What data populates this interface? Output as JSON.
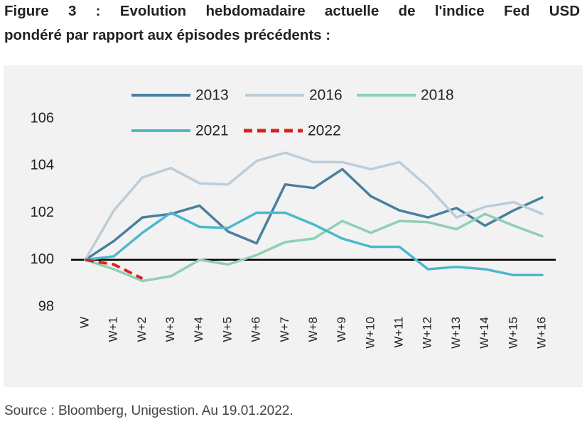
{
  "chart_data": {
    "type": "line",
    "title": [
      "Figure 3 : Evolution hebdomadaire actuelle de l'indice Fed USD",
      "pondéré par rapport aux épisodes précédents :"
    ],
    "source": "Source : Bloomberg, Unigestion. Au 19.01.2022.",
    "categories": [
      "W",
      "W+1",
      "W+2",
      "W+3",
      "W+4",
      "W+5",
      "W+6",
      "W+7",
      "W+8",
      "W+9",
      "W+10",
      "W+11",
      "W+12",
      "W+13",
      "W+14",
      "W+15",
      "W+16"
    ],
    "series": [
      {
        "name": "2013",
        "color": "#4a7fa0",
        "values": [
          100,
          100.8,
          101.8,
          101.95,
          102.3,
          101.2,
          100.7,
          103.2,
          103.05,
          103.85,
          102.7,
          102.1,
          101.8,
          102.2,
          101.45,
          102.1,
          102.65
        ]
      },
      {
        "name": "2016",
        "color": "#bccdd8",
        "values": [
          100,
          102.1,
          103.5,
          103.9,
          103.25,
          103.2,
          104.2,
          104.55,
          104.15,
          104.15,
          103.85,
          104.15,
          103.1,
          101.8,
          102.25,
          102.45,
          101.95
        ]
      },
      {
        "name": "2018",
        "color": "#8fd0b0",
        "values": [
          100,
          99.6,
          99.1,
          99.3,
          100,
          99.8,
          100.2,
          100.75,
          100.9,
          101.65,
          101.15,
          101.65,
          101.6,
          101.3,
          101.95,
          101.45,
          101.0
        ]
      },
      {
        "name": "2021",
        "color": "#4bb8cc",
        "values": [
          100,
          100.15,
          101.15,
          102.0,
          101.4,
          101.35,
          102.0,
          102.0,
          101.5,
          100.9,
          100.55,
          100.55,
          99.6,
          99.7,
          99.6,
          99.35,
          99.35
        ]
      },
      {
        "name": "2022",
        "color": "#e02020",
        "dashed": true,
        "values": [
          100,
          99.8,
          99.2,
          null,
          null,
          null,
          null,
          null,
          null,
          null,
          null,
          null,
          null,
          null,
          null,
          null,
          null
        ]
      }
    ],
    "ylim": [
      98,
      106
    ],
    "yticks": [
      98,
      100,
      102,
      104,
      106
    ],
    "hline": 100,
    "grid": false,
    "legend": "top"
  }
}
